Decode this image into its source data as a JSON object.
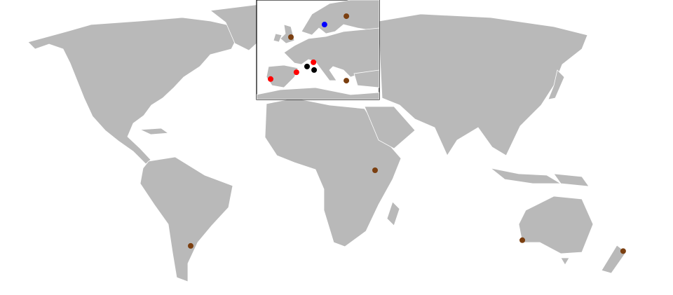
{
  "map": {
    "land_color": "#b9b9b9",
    "border_color": "#ffffff",
    "background": "#ffffff",
    "inset_region": "Europe",
    "marker_colors": {
      "brown": "#7b3f10",
      "red": "#ff0000",
      "black": "#000000",
      "blue": "#0000ff"
    },
    "world_markers": [
      {
        "lon": 38.5,
        "lat": -1.3,
        "color": "#7b3f10"
      },
      {
        "lon": -58.4,
        "lat": -34.6,
        "color": "#7b3f10"
      },
      {
        "lon": 115.9,
        "lat": -32.1,
        "color": "#7b3f10"
      },
      {
        "lon": 168.9,
        "lat": -36.9,
        "color": "#7b3f10"
      }
    ],
    "inset_markers": [
      {
        "lon": 25.1,
        "lat": 58.0,
        "color": "#7b3f10"
      },
      {
        "lon": 15.2,
        "lat": 55.4,
        "color": "#0000ff"
      },
      {
        "lon": 0.0,
        "lat": 51.5,
        "color": "#7b3f10"
      },
      {
        "lon": -9.2,
        "lat": 38.5,
        "color": "#ff0000"
      },
      {
        "lon": 2.5,
        "lat": 40.6,
        "color": "#ff0000"
      },
      {
        "lon": 7.3,
        "lat": 42.4,
        "color": "#000000"
      },
      {
        "lon": 10.2,
        "lat": 43.7,
        "color": "#ff0000"
      },
      {
        "lon": 10.5,
        "lat": 41.3,
        "color": "#000000"
      },
      {
        "lon": 25.1,
        "lat": 38.0,
        "color": "#7b3f10"
      }
    ]
  }
}
